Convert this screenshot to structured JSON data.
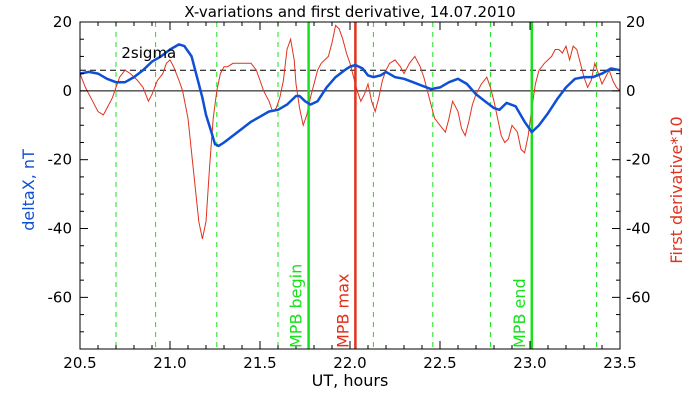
{
  "chart_data": {
    "type": "line",
    "title": "X-variations and first derivative, 14.07.2010",
    "xlabel": "UT, hours",
    "ylabel_left": "deltaX, nT",
    "ylabel_right": "First derivative*10",
    "xlim": [
      20.5,
      23.5
    ],
    "ylim": [
      -75,
      20
    ],
    "x_ticks": [
      20.5,
      21.0,
      21.5,
      22.0,
      22.5,
      23.0,
      23.5
    ],
    "x_tick_labels": [
      "20.5",
      "21.0",
      "21.5",
      "22.0",
      "22.5",
      "23.0",
      "23.5"
    ],
    "y_ticks": [
      20,
      0,
      -20,
      -40,
      -60
    ],
    "y_tick_labels": [
      "20",
      "0",
      "-20",
      "-40",
      "-60"
    ],
    "colors": {
      "deltaX": "#0f4fd6",
      "derivative": "#e0321c",
      "mpb_lines": "#19e01c",
      "max_line": "#e0321c",
      "dashed_grid": "#19e01c",
      "axes": "#000000"
    },
    "threshold": {
      "label": "2sigma",
      "value": 6
    },
    "zero_line": 0,
    "vertical_dashed_x": [
      20.7,
      20.92,
      21.26,
      21.6,
      22.13,
      22.46,
      22.78,
      23.37
    ],
    "markers": [
      {
        "label": "MPB begin",
        "x": 21.77,
        "color": "#19e01c"
      },
      {
        "label": "MPB max",
        "x": 22.03,
        "color": "#e0321c"
      },
      {
        "label": "MPB end",
        "x": 23.01,
        "color": "#19e01c"
      }
    ],
    "series": [
      {
        "key": "deltaX",
        "values": [
          [
            20.5,
            5
          ],
          [
            20.55,
            5.5
          ],
          [
            20.6,
            5
          ],
          [
            20.65,
            3.5
          ],
          [
            20.7,
            2.5
          ],
          [
            20.75,
            2.5
          ],
          [
            20.8,
            4
          ],
          [
            20.85,
            6
          ],
          [
            20.9,
            8.5
          ],
          [
            20.95,
            10
          ],
          [
            21.0,
            12
          ],
          [
            21.05,
            13.5
          ],
          [
            21.08,
            13
          ],
          [
            21.12,
            10
          ],
          [
            21.15,
            4
          ],
          [
            21.18,
            -2
          ],
          [
            21.2,
            -7
          ],
          [
            21.23,
            -12
          ],
          [
            21.25,
            -15.5
          ],
          [
            21.27,
            -16
          ],
          [
            21.3,
            -15
          ],
          [
            21.35,
            -13
          ],
          [
            21.4,
            -11
          ],
          [
            21.45,
            -9
          ],
          [
            21.5,
            -7.5
          ],
          [
            21.55,
            -6
          ],
          [
            21.6,
            -5.5
          ],
          [
            21.65,
            -4
          ],
          [
            21.7,
            -1.5
          ],
          [
            21.72,
            -1.5
          ],
          [
            21.75,
            -3
          ],
          [
            21.78,
            -4
          ],
          [
            21.82,
            -3
          ],
          [
            21.87,
            1
          ],
          [
            21.92,
            4
          ],
          [
            21.97,
            6
          ],
          [
            22.0,
            7
          ],
          [
            22.03,
            7.5
          ],
          [
            22.07,
            6.5
          ],
          [
            22.1,
            4.5
          ],
          [
            22.13,
            4
          ],
          [
            22.17,
            4.5
          ],
          [
            22.2,
            5.5
          ],
          [
            22.25,
            4
          ],
          [
            22.3,
            3.5
          ],
          [
            22.35,
            2.5
          ],
          [
            22.4,
            1.5
          ],
          [
            22.45,
            0.5
          ],
          [
            22.5,
            1
          ],
          [
            22.55,
            2.5
          ],
          [
            22.6,
            3.5
          ],
          [
            22.65,
            2
          ],
          [
            22.7,
            -1
          ],
          [
            22.75,
            -3
          ],
          [
            22.8,
            -5
          ],
          [
            22.83,
            -5.5
          ],
          [
            22.87,
            -3.5
          ],
          [
            22.92,
            -4.5
          ],
          [
            22.97,
            -9
          ],
          [
            23.01,
            -12
          ],
          [
            23.05,
            -10
          ],
          [
            23.1,
            -6.5
          ],
          [
            23.15,
            -2.5
          ],
          [
            23.2,
            1
          ],
          [
            23.25,
            3.5
          ],
          [
            23.3,
            4
          ],
          [
            23.35,
            4
          ],
          [
            23.4,
            5
          ],
          [
            23.45,
            6.5
          ],
          [
            23.5,
            6
          ]
        ]
      },
      {
        "key": "derivative",
        "values": [
          [
            20.5,
            5
          ],
          [
            20.53,
            1
          ],
          [
            20.57,
            -3
          ],
          [
            20.6,
            -6
          ],
          [
            20.63,
            -7
          ],
          [
            20.65,
            -5
          ],
          [
            20.68,
            -2
          ],
          [
            20.7,
            1
          ],
          [
            20.72,
            4
          ],
          [
            20.75,
            6
          ],
          [
            20.78,
            5
          ],
          [
            20.82,
            3
          ],
          [
            20.85,
            1
          ],
          [
            20.88,
            -3
          ],
          [
            20.9,
            -1
          ],
          [
            20.93,
            3
          ],
          [
            20.96,
            5
          ],
          [
            20.98,
            8
          ],
          [
            21.0,
            9
          ],
          [
            21.02,
            7
          ],
          [
            21.05,
            3
          ],
          [
            21.07,
            0
          ],
          [
            21.1,
            -8
          ],
          [
            21.12,
            -18
          ],
          [
            21.14,
            -28
          ],
          [
            21.16,
            -38
          ],
          [
            21.18,
            -43
          ],
          [
            21.2,
            -38
          ],
          [
            21.22,
            -22
          ],
          [
            21.24,
            -8
          ],
          [
            21.26,
            0
          ],
          [
            21.28,
            5
          ],
          [
            21.3,
            7
          ],
          [
            21.32,
            7
          ],
          [
            21.35,
            8
          ],
          [
            21.4,
            8
          ],
          [
            21.45,
            8
          ],
          [
            21.48,
            6
          ],
          [
            21.5,
            3
          ],
          [
            21.52,
            0
          ],
          [
            21.55,
            -3
          ],
          [
            21.57,
            -6
          ],
          [
            21.59,
            -5
          ],
          [
            21.61,
            -2
          ],
          [
            21.63,
            3
          ],
          [
            21.65,
            12
          ],
          [
            21.67,
            15
          ],
          [
            21.69,
            9
          ],
          [
            21.7,
            2
          ],
          [
            21.72,
            -5
          ],
          [
            21.74,
            -10
          ],
          [
            21.76,
            -7
          ],
          [
            21.78,
            -2
          ],
          [
            21.8,
            2
          ],
          [
            21.82,
            6
          ],
          [
            21.84,
            8
          ],
          [
            21.86,
            9
          ],
          [
            21.88,
            10
          ],
          [
            21.9,
            14
          ],
          [
            21.92,
            19
          ],
          [
            21.94,
            18
          ],
          [
            21.96,
            15
          ],
          [
            21.98,
            11
          ],
          [
            22.0,
            8
          ],
          [
            22.02,
            4
          ],
          [
            22.04,
            0
          ],
          [
            22.06,
            -3
          ],
          [
            22.08,
            -1
          ],
          [
            22.1,
            2
          ],
          [
            22.12,
            -3
          ],
          [
            22.14,
            -6
          ],
          [
            22.16,
            -2
          ],
          [
            22.18,
            3
          ],
          [
            22.2,
            6
          ],
          [
            22.22,
            8
          ],
          [
            22.25,
            9
          ],
          [
            22.28,
            7
          ],
          [
            22.3,
            5
          ],
          [
            22.33,
            8
          ],
          [
            22.36,
            10
          ],
          [
            22.39,
            7
          ],
          [
            22.41,
            4
          ],
          [
            22.43,
            0
          ],
          [
            22.45,
            -4
          ],
          [
            22.47,
            -8
          ],
          [
            22.5,
            -10
          ],
          [
            22.53,
            -12
          ],
          [
            22.55,
            -8
          ],
          [
            22.57,
            -3
          ],
          [
            22.6,
            -6
          ],
          [
            22.62,
            -11
          ],
          [
            22.64,
            -13
          ],
          [
            22.66,
            -9
          ],
          [
            22.68,
            -4
          ],
          [
            22.7,
            -1
          ],
          [
            22.73,
            2
          ],
          [
            22.76,
            4
          ],
          [
            22.78,
            1
          ],
          [
            22.8,
            -3
          ],
          [
            22.82,
            -8
          ],
          [
            22.84,
            -13
          ],
          [
            22.86,
            -15
          ],
          [
            22.88,
            -14
          ],
          [
            22.9,
            -10
          ],
          [
            22.93,
            -12
          ],
          [
            22.95,
            -17
          ],
          [
            22.97,
            -18
          ],
          [
            22.99,
            -13
          ],
          [
            23.01,
            -5
          ],
          [
            23.03,
            2
          ],
          [
            23.05,
            6
          ],
          [
            23.08,
            8
          ],
          [
            23.1,
            9
          ],
          [
            23.12,
            10
          ],
          [
            23.14,
            12
          ],
          [
            23.16,
            12
          ],
          [
            23.18,
            11
          ],
          [
            23.2,
            13
          ],
          [
            23.22,
            9
          ],
          [
            23.24,
            13
          ],
          [
            23.26,
            12
          ],
          [
            23.28,
            8
          ],
          [
            23.3,
            4
          ],
          [
            23.32,
            1
          ],
          [
            23.34,
            3
          ],
          [
            23.36,
            8
          ],
          [
            23.38,
            5
          ],
          [
            23.4,
            2
          ],
          [
            23.42,
            4
          ],
          [
            23.44,
            6
          ],
          [
            23.46,
            3
          ],
          [
            23.48,
            1
          ],
          [
            23.5,
            0
          ]
        ]
      }
    ]
  }
}
